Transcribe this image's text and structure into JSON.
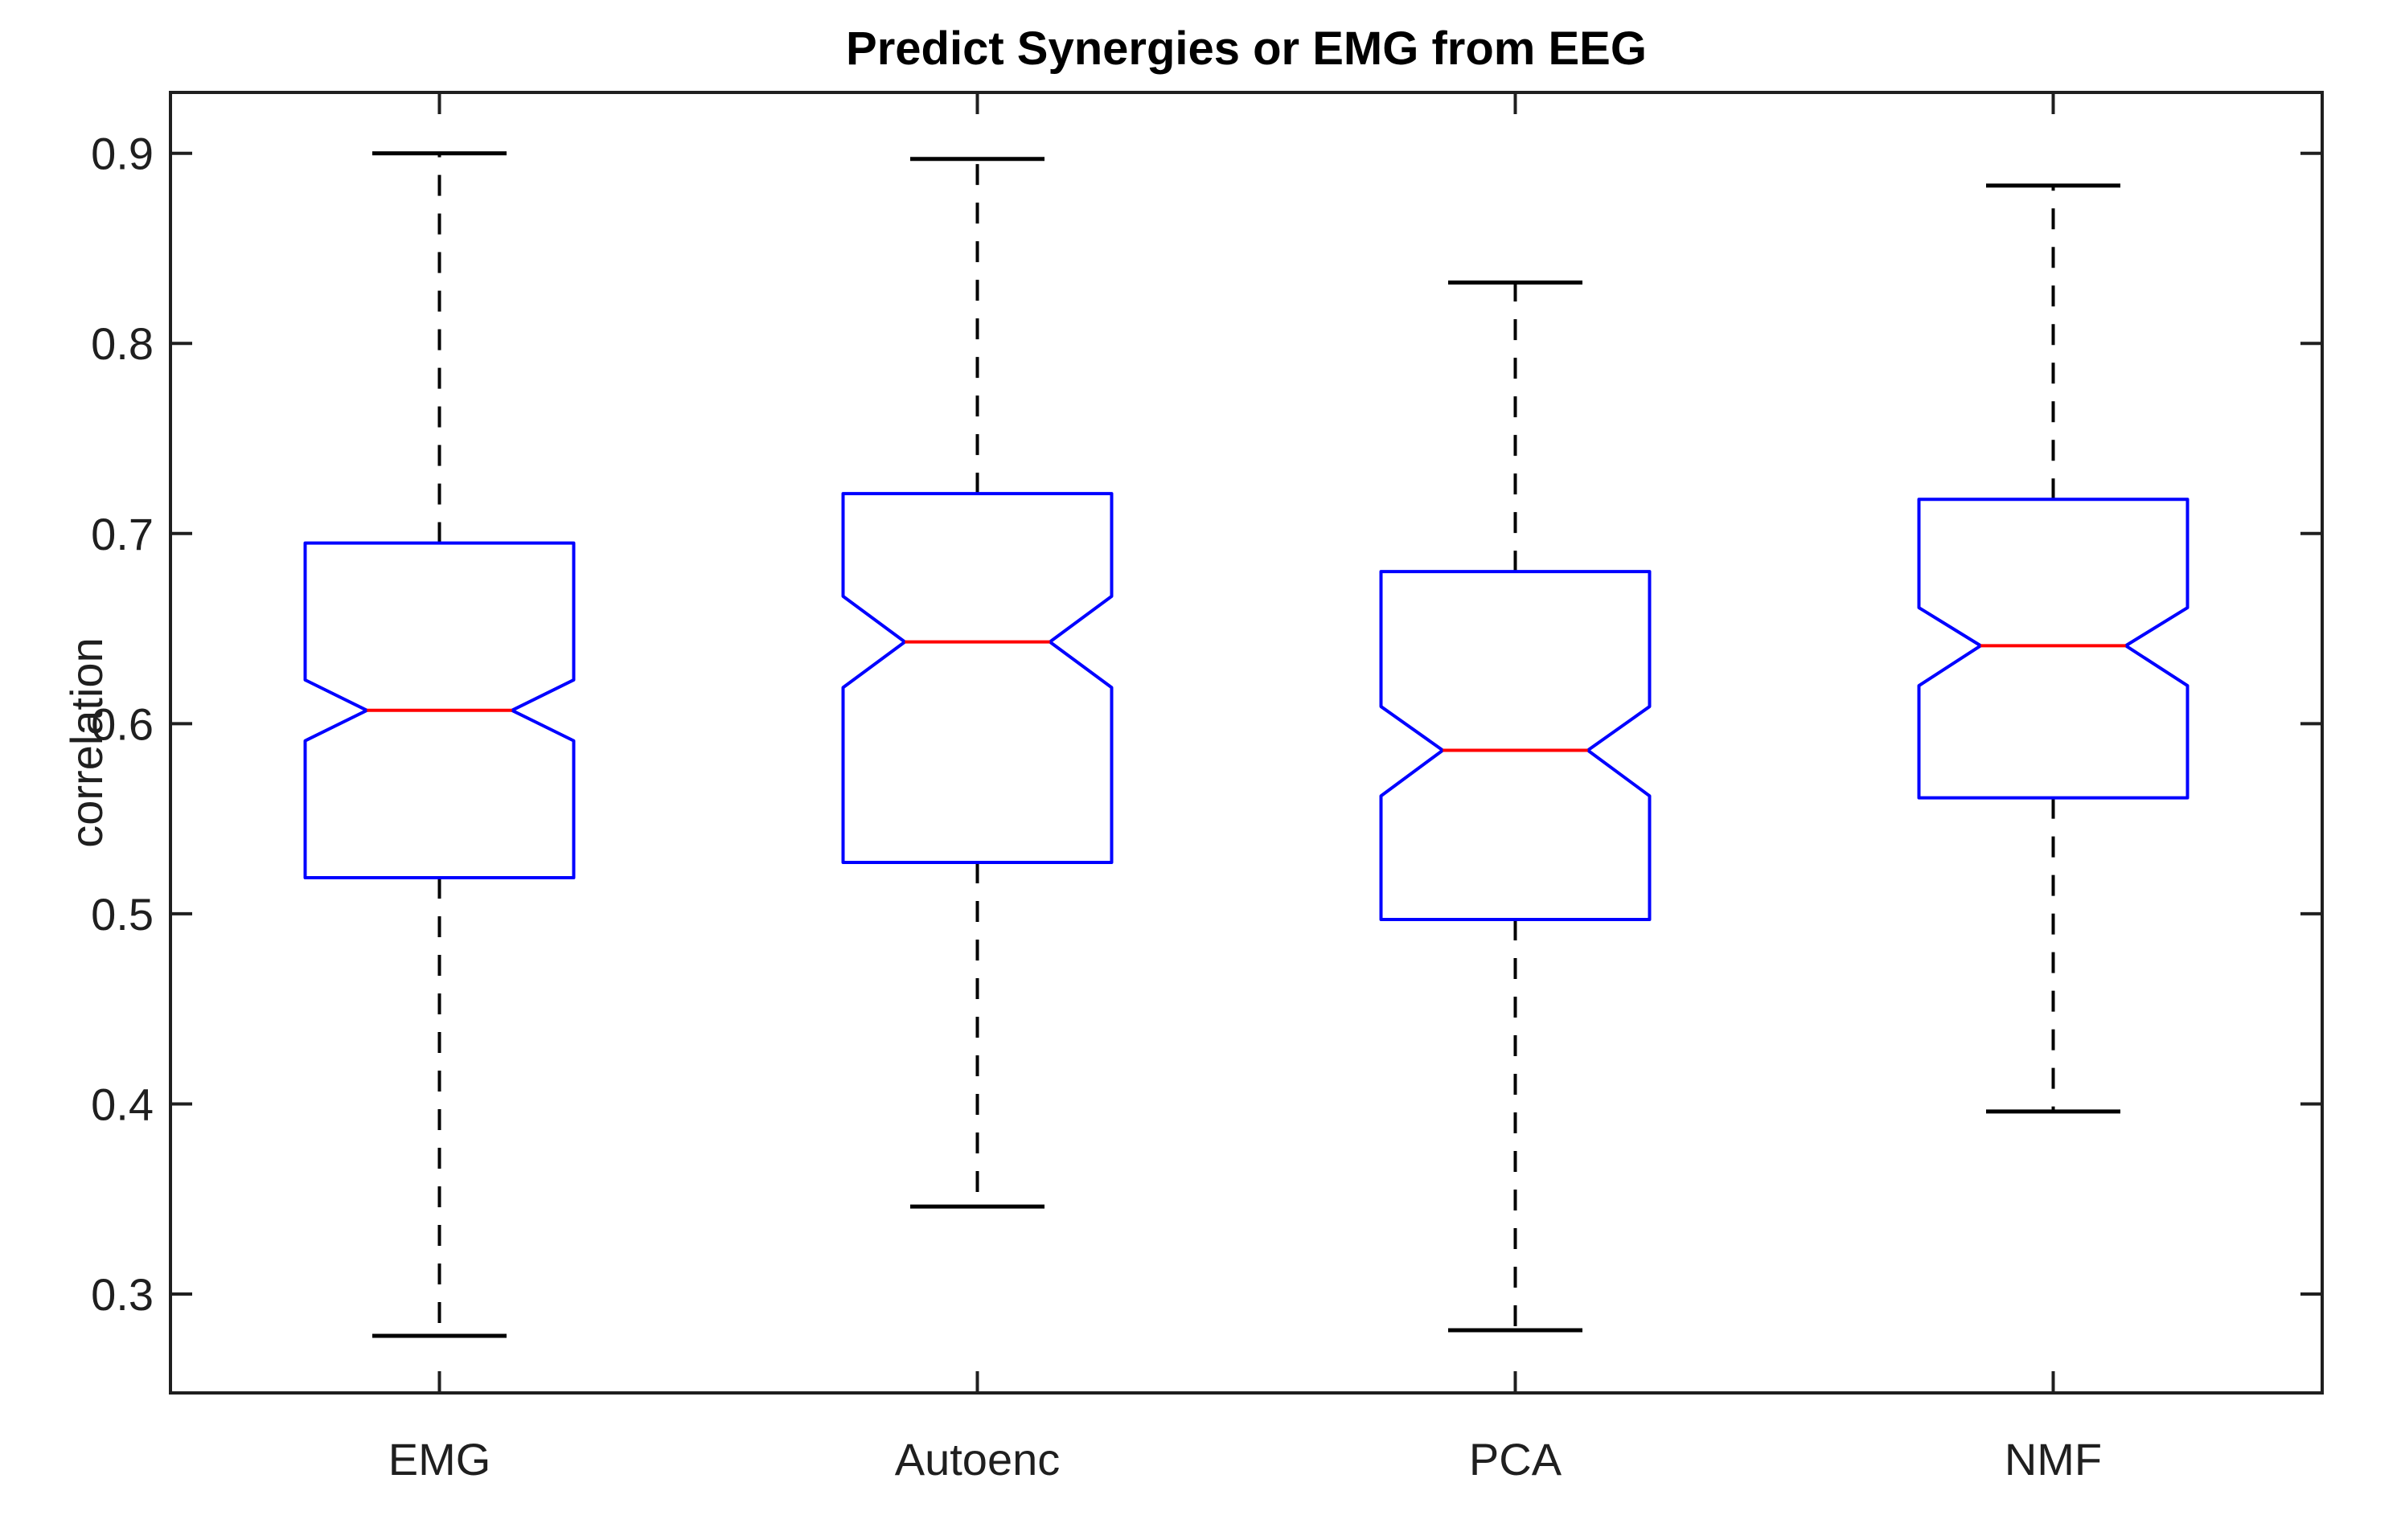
{
  "figure": {
    "title": "Predict Synergies or EMG from EEG",
    "ylabel": "correlation"
  },
  "chart_data": {
    "type": "boxplot",
    "title": "Predict Synergies or EMG from EEG",
    "xlabel": "",
    "ylabel": "correlation",
    "categories": [
      "EMG",
      "Autoenc",
      "PCA",
      "NMF"
    ],
    "yticks": [
      0.3,
      0.4,
      0.5,
      0.6,
      0.7,
      0.8,
      0.9
    ],
    "ytick_labels": [
      "0.3",
      "0.4",
      "0.5",
      "0.6",
      "0.7",
      "0.8",
      "0.9"
    ],
    "ylim": [
      0.248,
      0.932
    ],
    "xlim": [
      0.5,
      4.5
    ],
    "notched": true,
    "grid": false,
    "legend": false,
    "series": [
      {
        "name": "EMG",
        "position": 1,
        "whisker_low": 0.278,
        "q1": 0.519,
        "notch_low": 0.591,
        "median": 0.607,
        "notch_high": 0.623,
        "q3": 0.695,
        "whisker_high": 0.9
      },
      {
        "name": "Autoenc",
        "position": 2,
        "whisker_low": 0.346,
        "q1": 0.527,
        "notch_low": 0.619,
        "median": 0.643,
        "notch_high": 0.667,
        "q3": 0.721,
        "whisker_high": 0.897
      },
      {
        "name": "PCA",
        "position": 3,
        "whisker_low": 0.281,
        "q1": 0.497,
        "notch_low": 0.562,
        "median": 0.586,
        "notch_high": 0.609,
        "q3": 0.68,
        "whisker_high": 0.832
      },
      {
        "name": "NMF",
        "position": 4,
        "whisker_low": 0.396,
        "q1": 0.561,
        "notch_low": 0.62,
        "median": 0.641,
        "notch_high": 0.661,
        "q3": 0.718,
        "whisker_high": 0.883
      }
    ],
    "colors": {
      "box": "#0000ff",
      "median": "#ff0000",
      "whisker": "#000000",
      "cap": "#000000",
      "axis": "#1f1f1f",
      "text": "#1f1f1f",
      "background": "#ffffff"
    }
  }
}
